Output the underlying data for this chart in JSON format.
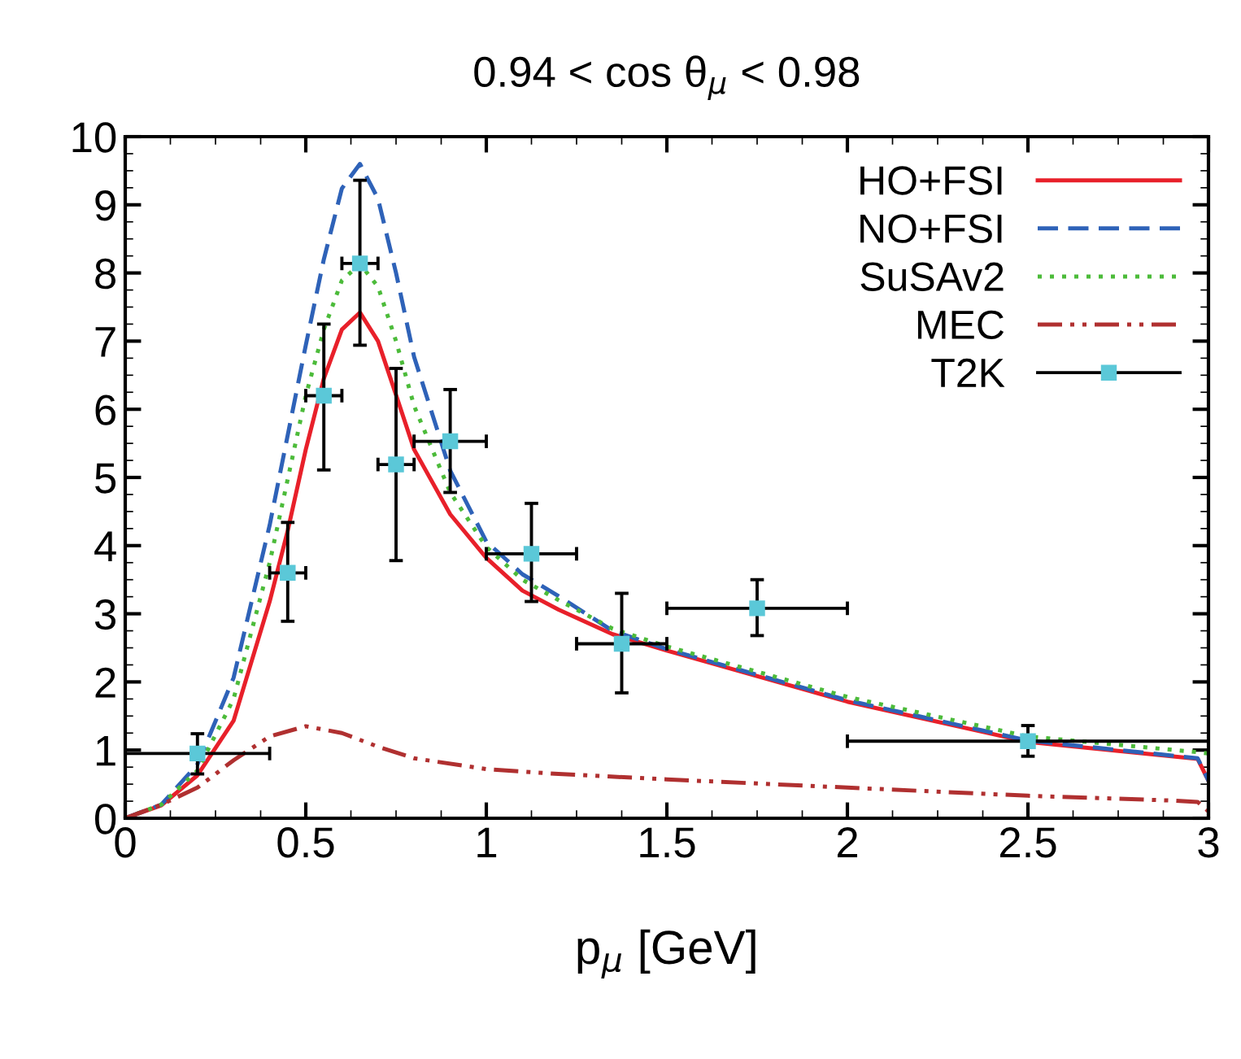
{
  "chart_data": {
    "type": "line",
    "title": "0.94 < cos θ$_{μ}$ < 0.98",
    "xlabel": "p$_{μ}$ [GeV]",
    "xlim": [
      0,
      3
    ],
    "ylim": [
      0,
      10
    ],
    "xticks": [
      0,
      0.5,
      1,
      1.5,
      2,
      2.5,
      3
    ],
    "yticks": [
      0,
      1,
      2,
      3,
      4,
      5,
      6,
      7,
      8,
      9,
      10
    ],
    "grid": false,
    "legend": "top right",
    "marker": "none",
    "series": [
      {
        "name": "HO+FSI",
        "color": "#e8202a",
        "line_style": "solid",
        "x": [
          0,
          0.1,
          0.2,
          0.3,
          0.4,
          0.45,
          0.5,
          0.55,
          0.6,
          0.65,
          0.7,
          0.75,
          0.8,
          0.9,
          1.0,
          1.1,
          1.2,
          1.35,
          1.5,
          2.0,
          2.5,
          2.97,
          3.0
        ],
        "values": [
          0,
          0.19,
          0.63,
          1.43,
          3.18,
          4.22,
          5.41,
          6.45,
          7.17,
          7.42,
          7.0,
          6.21,
          5.41,
          4.46,
          3.82,
          3.34,
          3.06,
          2.7,
          2.46,
          1.71,
          1.12,
          0.87,
          0.55
        ]
      },
      {
        "name": "NO+FSI",
        "color": "#2e62b8",
        "line_style": "dashed",
        "x": [
          0,
          0.1,
          0.2,
          0.3,
          0.4,
          0.5,
          0.55,
          0.6,
          0.65,
          0.7,
          0.75,
          0.8,
          0.9,
          1.0,
          1.1,
          1.2,
          1.35,
          1.5,
          2.0,
          2.5,
          2.97,
          3.0
        ],
        "values": [
          0,
          0.2,
          0.79,
          2.06,
          4.3,
          6.94,
          8.2,
          9.24,
          9.6,
          9.09,
          8.0,
          6.77,
          5.1,
          4.06,
          3.58,
          3.26,
          2.75,
          2.48,
          1.73,
          1.14,
          0.88,
          0.55
        ]
      },
      {
        "name": "SuSAv2",
        "color": "#4cbb3a",
        "line_style": "dotted",
        "x": [
          0,
          0.1,
          0.2,
          0.3,
          0.4,
          0.5,
          0.55,
          0.6,
          0.65,
          0.7,
          0.75,
          0.8,
          0.9,
          1.0,
          1.1,
          1.2,
          1.35,
          1.5,
          2.0,
          2.5,
          2.97,
          3.0
        ],
        "values": [
          0,
          0.2,
          0.7,
          1.75,
          3.75,
          6.2,
          7.17,
          7.89,
          8.13,
          7.8,
          7.0,
          6.05,
          4.78,
          3.98,
          3.5,
          3.2,
          2.78,
          2.52,
          1.78,
          1.2,
          0.97,
          0.95
        ]
      },
      {
        "name": "MEC",
        "color": "#b03030",
        "line_style": "dashdot",
        "x": [
          0,
          0.1,
          0.2,
          0.3,
          0.4,
          0.5,
          0.6,
          0.7,
          0.8,
          1.0,
          1.2,
          1.5,
          2.0,
          2.5,
          2.9,
          2.97,
          3.0
        ],
        "values": [
          0,
          0.2,
          0.45,
          0.85,
          1.2,
          1.35,
          1.25,
          1.05,
          0.88,
          0.72,
          0.65,
          0.57,
          0.45,
          0.33,
          0.26,
          0.24,
          0.1
        ]
      },
      {
        "name": "T2K",
        "type": "scatter",
        "color": "#5bc8d8",
        "marker": "square",
        "x": [
          0.2,
          0.45,
          0.55,
          0.65,
          0.75,
          0.9,
          1.125,
          1.375,
          1.75,
          2.5
        ],
        "values": [
          0.95,
          3.6,
          6.2,
          8.14,
          5.19,
          5.53,
          3.88,
          2.56,
          3.08,
          1.13
        ],
        "errors": [
          [
            0.65,
            1.24
          ],
          [
            2.89,
            4.34
          ],
          [
            5.11,
            7.25
          ],
          [
            6.94,
            9.36
          ],
          [
            3.78,
            6.6
          ],
          [
            4.78,
            6.29
          ],
          [
            3.18,
            4.62
          ],
          [
            1.84,
            3.3
          ],
          [
            2.68,
            3.5
          ],
          [
            0.91,
            1.36
          ]
        ],
        "xerrors": [
          [
            0,
            0.4
          ],
          [
            0.4,
            0.5
          ],
          [
            0.5,
            0.6
          ],
          [
            0.6,
            0.7
          ],
          [
            0.7,
            0.8
          ],
          [
            0.8,
            1.0
          ],
          [
            1.0,
            1.25
          ],
          [
            1.25,
            1.5
          ],
          [
            1.5,
            2.0
          ],
          [
            2.0,
            3.0
          ]
        ]
      }
    ]
  }
}
